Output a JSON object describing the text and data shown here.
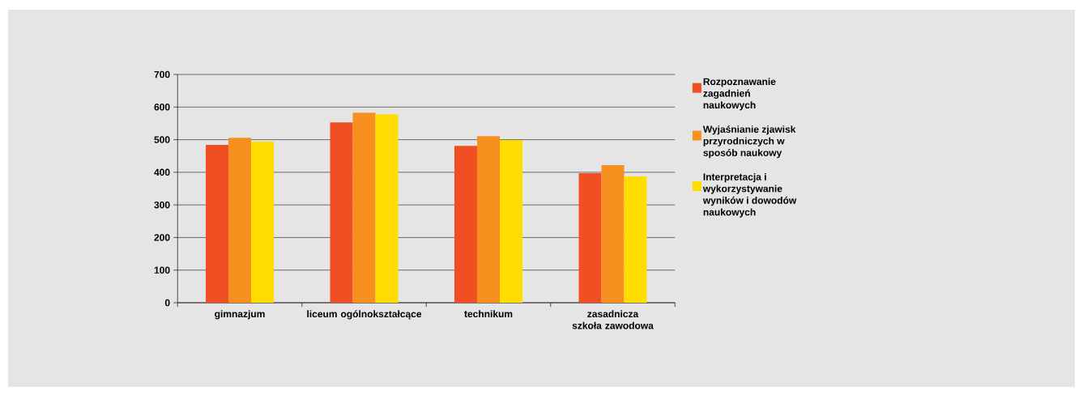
{
  "chart_data": {
    "type": "bar",
    "categories": [
      "gimnazjum",
      "liceum ogólnokształcące",
      "technikum",
      "zasadnicza szkoła zawodowa"
    ],
    "series": [
      {
        "name": "Rozpoznawanie zagadnień naukowych",
        "color": "#f04e23",
        "values": [
          484,
          553,
          481,
          397
        ]
      },
      {
        "name": "Wyjaśnianie zjawisk przyrodniczych w sposób naukowy",
        "color": "#f7901e",
        "values": [
          506,
          583,
          511,
          422
        ]
      },
      {
        "name": "Interpretacja i wykorzystywanie wyników i dowodów naukowych",
        "color": "#ffdd00",
        "values": [
          494,
          578,
          499,
          387
        ]
      }
    ],
    "ylim": [
      0,
      700
    ],
    "yticks": [
      0,
      100,
      200,
      300,
      400,
      500,
      600,
      700
    ],
    "grid": "y",
    "legend": "right"
  }
}
